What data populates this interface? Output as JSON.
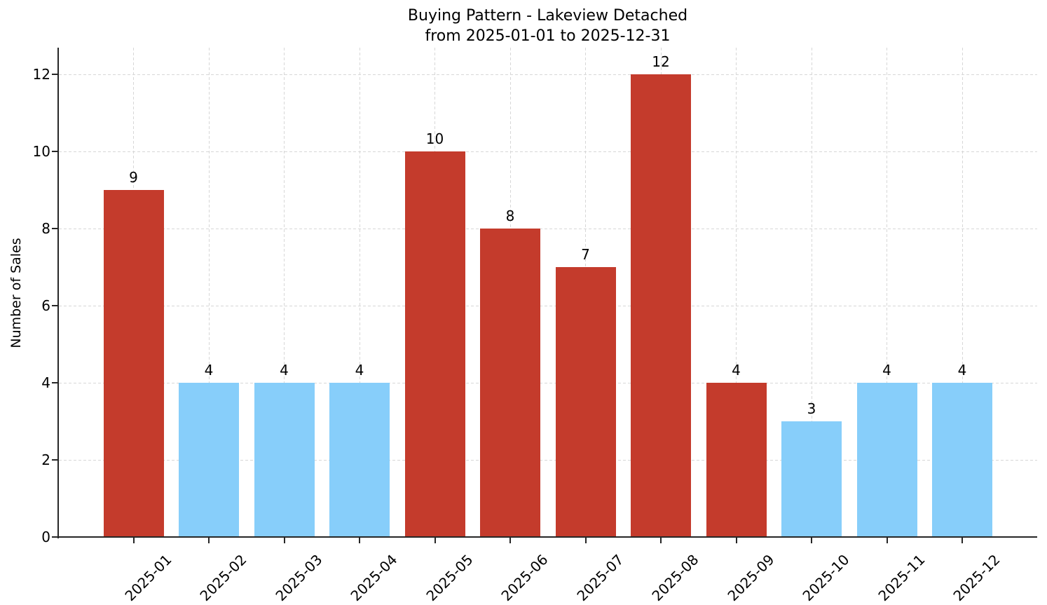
{
  "chart_data": {
    "type": "bar",
    "title_lines": [
      "Buying Pattern - Lakeview Detached",
      "from 2025-01-01 to 2025-12-31"
    ],
    "ylabel": "Number of Sales",
    "xlabel": "",
    "categories": [
      "2025-01",
      "2025-02",
      "2025-03",
      "2025-04",
      "2025-05",
      "2025-06",
      "2025-07",
      "2025-08",
      "2025-09",
      "2025-10",
      "2025-11",
      "2025-12"
    ],
    "values": [
      9,
      4,
      4,
      4,
      10,
      8,
      7,
      12,
      4,
      3,
      4,
      4
    ],
    "bar_colors": [
      "#c43b2c",
      "#87cefa",
      "#87cefa",
      "#87cefa",
      "#c43b2c",
      "#c43b2c",
      "#c43b2c",
      "#c43b2c",
      "#c43b2c",
      "#87cefa",
      "#87cefa",
      "#87cefa"
    ],
    "value_labels_shown": true,
    "yticks": [
      0,
      2,
      4,
      6,
      8,
      10,
      12
    ],
    "ylim": [
      0,
      12.7
    ],
    "grid": {
      "visible": true,
      "style": "dashed",
      "color": "#d7d7d7"
    },
    "legend": null,
    "colors": {
      "highlight_bar": "#c43b2c",
      "regular_bar": "#87cefa",
      "axis": "#262626",
      "text": "#000000",
      "background": "#ffffff"
    }
  }
}
